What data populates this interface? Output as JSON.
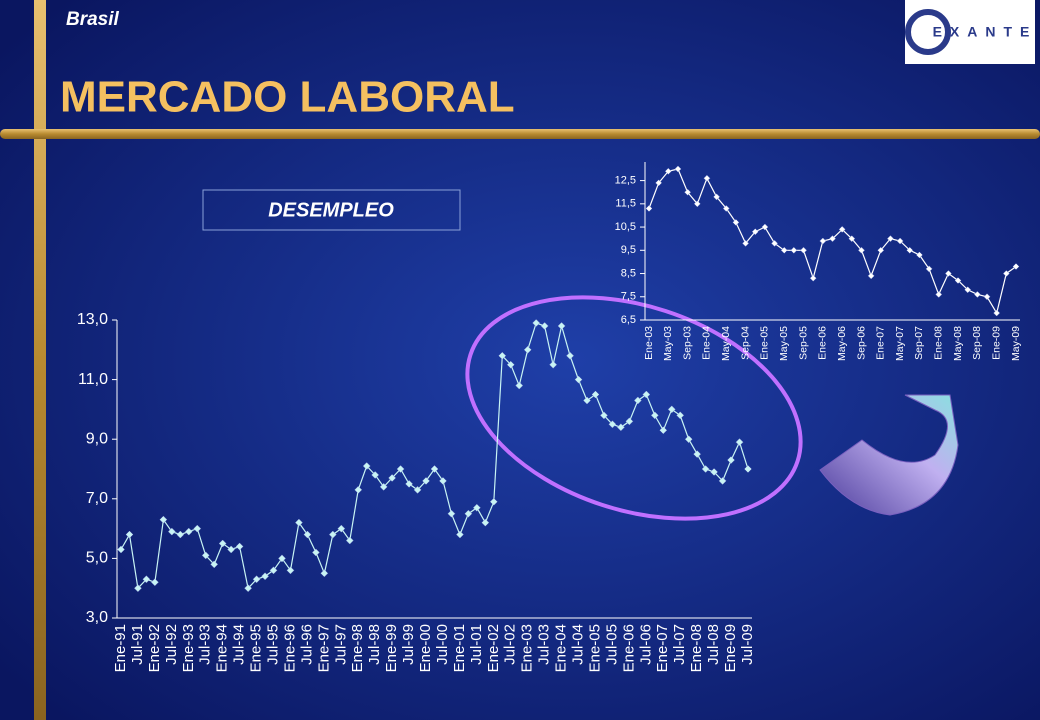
{
  "header": {
    "region": "Brasil",
    "title": "MERCADO LABORAL",
    "logo": "EXANTE",
    "box_label": "DESEMPLEO"
  },
  "chart_data": [
    {
      "type": "line",
      "color": "#c8f4f4",
      "categories": [
        "Ene-91",
        null,
        "Jul-91",
        null,
        "Ene-92",
        null,
        "Jul-92",
        null,
        "Ene-93",
        null,
        "Jul-93",
        null,
        "Ene-94",
        null,
        "Jul-94",
        null,
        "Ene-95",
        null,
        "Jul-95",
        null,
        "Ene-96",
        null,
        "Jul-96",
        null,
        "Ene-97",
        null,
        "Jul-97",
        null,
        "Ene-98",
        null,
        "Jul-98",
        null,
        "Ene-99",
        null,
        "Jul-99",
        null,
        "Ene-00",
        null,
        "Jul-00",
        null,
        "Ene-01",
        null,
        "Jul-01",
        null,
        "Ene-02",
        null,
        "Jul-02",
        null,
        "Ene-03",
        null,
        "Jul-03",
        null,
        "Ene-04",
        null,
        "Jul-04",
        null,
        "Ene-05",
        null,
        "Jul-05",
        null,
        "Ene-06",
        null,
        "Jul-06",
        null,
        "Ene-07",
        null,
        "Jul-07",
        null,
        "Ene-08",
        null,
        "Jul-08",
        null,
        "Ene-09",
        null,
        "Jul-09"
      ],
      "values": [
        5.3,
        5.8,
        4.0,
        4.3,
        4.2,
        6.3,
        5.9,
        5.8,
        5.9,
        6.0,
        5.1,
        4.8,
        5.5,
        5.3,
        5.4,
        4.0,
        4.3,
        4.4,
        4.6,
        5.0,
        4.6,
        6.2,
        5.8,
        5.2,
        4.5,
        5.8,
        6.0,
        5.6,
        7.3,
        8.1,
        7.8,
        7.4,
        7.7,
        8.0,
        7.5,
        7.3,
        7.6,
        8.0,
        7.6,
        6.5,
        5.8,
        6.5,
        6.7,
        6.2,
        6.9,
        11.8,
        11.5,
        10.8,
        12.0,
        12.9,
        12.8,
        11.5,
        12.8,
        11.8,
        11.0,
        10.3,
        10.5,
        9.8,
        9.5,
        9.4,
        9.6,
        10.3,
        10.5,
        9.8,
        9.3,
        10.0,
        9.8,
        9.0,
        8.5,
        8.0,
        7.9,
        7.6,
        8.3,
        8.9,
        8.0
      ],
      "ylim": [
        3,
        13
      ],
      "yticks": [
        {
          "value": 3,
          "label": "3,0"
        },
        {
          "value": 5,
          "label": "5,0"
        },
        {
          "value": 7,
          "label": "7,0"
        },
        {
          "value": 9,
          "label": "9,0"
        },
        {
          "value": 11,
          "label": "11,0"
        },
        {
          "value": 13,
          "label": "13,0"
        }
      ]
    },
    {
      "type": "line",
      "color": "#ffffff",
      "categories": [
        "Ene-03",
        null,
        "May-03",
        null,
        "Sep-03",
        null,
        "Ene-04",
        null,
        "May-04",
        null,
        "Sep-04",
        null,
        "Ene-05",
        null,
        "May-05",
        null,
        "Sep-05",
        null,
        "Ene-06",
        null,
        "May-06",
        null,
        "Sep-06",
        null,
        "Ene-07",
        null,
        "May-07",
        null,
        "Sep-07",
        null,
        "Ene-08",
        null,
        "May-08",
        null,
        "Sep-08",
        null,
        "Ene-09",
        null,
        "May-09"
      ],
      "values": [
        11.3,
        12.4,
        12.9,
        13.0,
        12.0,
        11.5,
        12.6,
        11.8,
        11.3,
        10.7,
        9.8,
        10.3,
        10.5,
        9.8,
        9.5,
        9.5,
        9.5,
        8.3,
        9.9,
        10.0,
        10.4,
        10.0,
        9.5,
        8.4,
        9.5,
        10.0,
        9.9,
        9.5,
        9.3,
        8.7,
        7.6,
        8.5,
        8.2,
        7.8,
        7.6,
        7.5,
        6.8,
        8.5,
        8.8
      ],
      "ylim": [
        6.5,
        13.3
      ],
      "yticks": [
        {
          "value": 6.5,
          "label": "6,5"
        },
        {
          "value": 7.5,
          "label": "7,5"
        },
        {
          "value": 8.5,
          "label": "8,5"
        },
        {
          "value": 9.5,
          "label": "9,5"
        },
        {
          "value": 10.5,
          "label": "10,5"
        },
        {
          "value": 11.5,
          "label": "11,5"
        },
        {
          "value": 12.5,
          "label": "12,5"
        }
      ]
    }
  ]
}
